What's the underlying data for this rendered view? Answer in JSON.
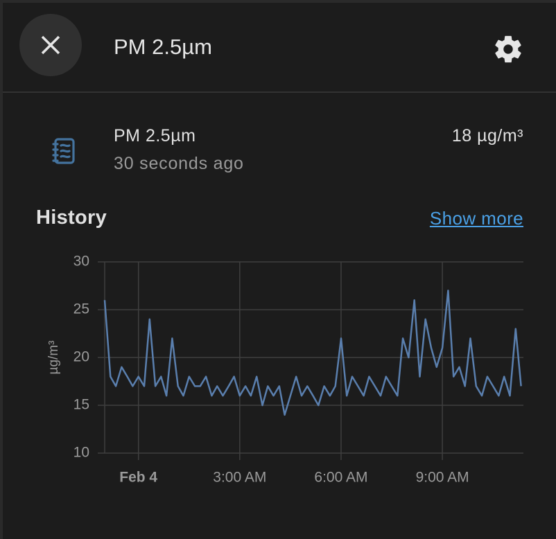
{
  "header": {
    "title": "PM 2.5µm"
  },
  "entity": {
    "name": "PM 2.5µm",
    "last_changed": "30 seconds ago",
    "state": "18 µg/m³"
  },
  "history": {
    "heading": "History",
    "link": "Show more"
  },
  "chart_data": {
    "type": "line",
    "y_label": "µg/m³",
    "grid": true,
    "color": "#5a7fae",
    "x": [
      -1,
      -0.83,
      -0.67,
      -0.5,
      -0.33,
      -0.17,
      0,
      0.17,
      0.33,
      0.5,
      0.67,
      0.83,
      1,
      1.17,
      1.33,
      1.5,
      1.67,
      1.83,
      2,
      2.17,
      2.33,
      2.5,
      2.67,
      2.83,
      3,
      3.17,
      3.33,
      3.5,
      3.67,
      3.83,
      4,
      4.17,
      4.33,
      4.5,
      4.67,
      4.83,
      5,
      5.17,
      5.33,
      5.5,
      5.67,
      5.83,
      6,
      6.17,
      6.33,
      6.5,
      6.67,
      6.83,
      7,
      7.17,
      7.33,
      7.5,
      7.67,
      7.83,
      8,
      8.17,
      8.33,
      8.5,
      8.67,
      8.83,
      9,
      9.17,
      9.33,
      9.5,
      9.67,
      9.83,
      10,
      10.17,
      10.33,
      10.5,
      10.67,
      10.83,
      11,
      11.17,
      11.33
    ],
    "values": [
      26,
      18,
      17,
      19,
      18,
      17,
      18,
      17,
      24,
      17,
      18,
      16,
      22,
      17,
      16,
      18,
      17,
      17,
      18,
      16,
      17,
      16,
      17,
      18,
      16,
      17,
      16,
      18,
      15,
      17,
      16,
      17,
      14,
      16,
      18,
      16,
      17,
      16,
      15,
      17,
      16,
      17,
      22,
      16,
      18,
      17,
      16,
      18,
      17,
      16,
      18,
      17,
      16,
      22,
      20,
      26,
      18,
      24,
      21,
      19,
      21,
      27,
      18,
      19,
      17,
      22,
      17,
      16,
      18,
      17,
      16,
      18,
      16,
      23,
      17
    ],
    "xlim": [
      -1,
      11.4
    ],
    "xticks": [
      {
        "value": 0,
        "label": "Feb 4"
      },
      {
        "value": 3,
        "label": "3:00 AM"
      },
      {
        "value": 6,
        "label": "6:00 AM"
      },
      {
        "value": 9,
        "label": "9:00 AM"
      }
    ],
    "ylim": [
      10,
      30
    ],
    "yticks": [
      10,
      15,
      20,
      25,
      30
    ]
  }
}
